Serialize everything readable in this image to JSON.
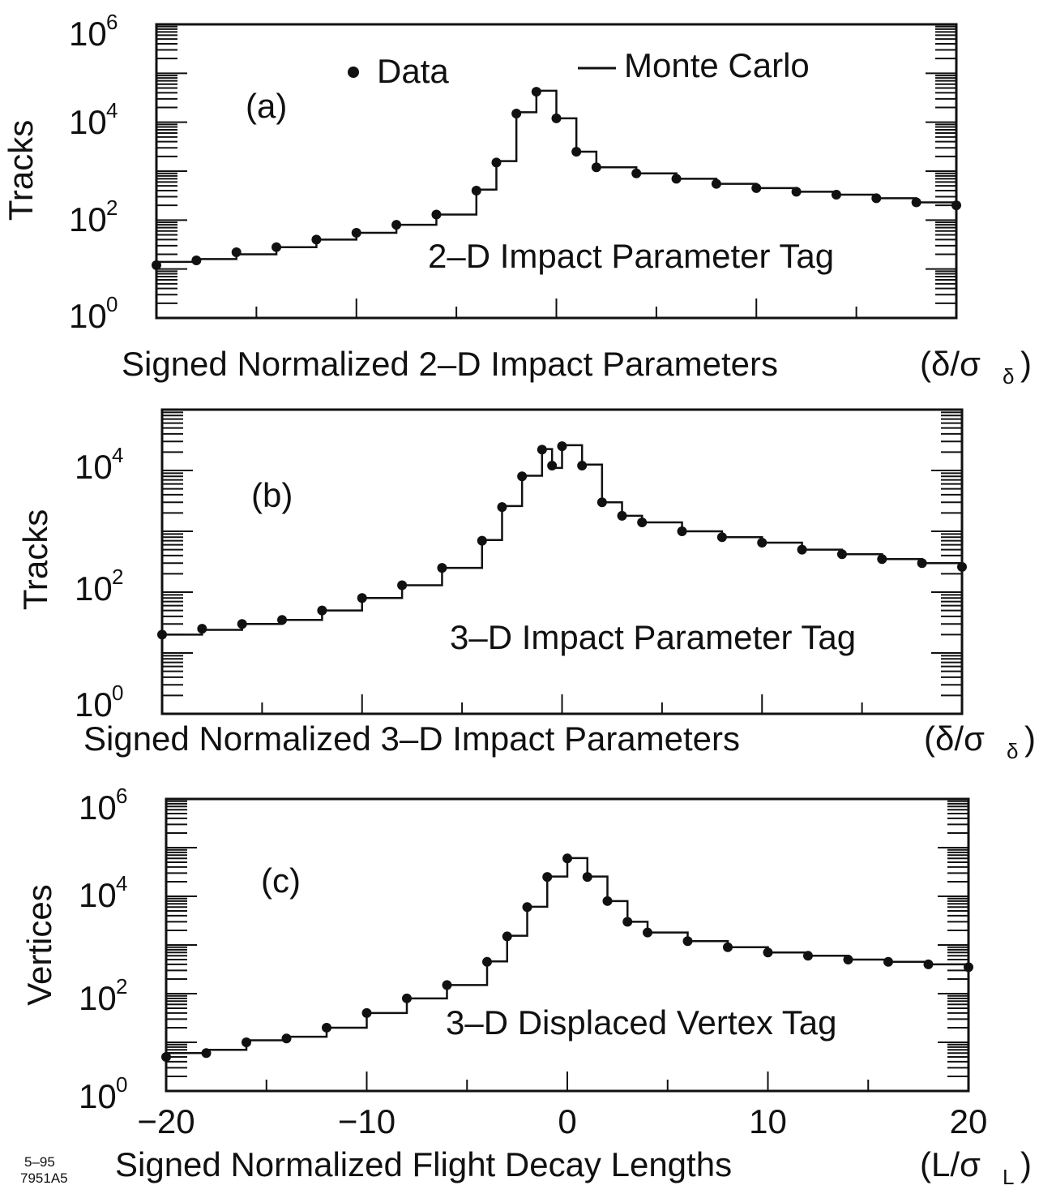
{
  "legend": {
    "data_label": "Data",
    "mc_label": "Monte Carlo"
  },
  "footnote": {
    "line1": "5–95",
    "line2": "7951A5"
  },
  "chart_data": [
    {
      "type": "histogram",
      "panel_label": "(a)",
      "tag_label": "2–D Impact Parameter Tag",
      "ylabel": "Tracks",
      "xlabel": "Signed Normalized 2–D Impact Parameters",
      "xlabel_unit": "(δ/σ",
      "xlabel_unit_sub": "δ",
      "xlim": [
        -20,
        20
      ],
      "ylim": [
        1,
        1000000
      ],
      "yscale": "log",
      "ytick_labels": [
        {
          "base": "10",
          "exp": "6",
          "value": 1000000
        },
        {
          "base": "10",
          "exp": "4",
          "value": 10000
        },
        {
          "base": "10",
          "exp": "2",
          "value": 100
        },
        {
          "base": "10",
          "exp": "0",
          "value": 1
        }
      ],
      "xtick_labels": [],
      "series": [
        {
          "name": "Data",
          "style": "points",
          "x": [
            -20,
            -18,
            -16,
            -14,
            -12,
            -10,
            -8,
            -6,
            -4,
            -3,
            -2,
            -1,
            0,
            1,
            2,
            4,
            6,
            8,
            10,
            12,
            14,
            16,
            18,
            20
          ],
          "y": [
            12,
            15,
            22,
            28,
            40,
            55,
            80,
            130,
            400,
            1500,
            15000,
            42000,
            12000,
            2500,
            1200,
            900,
            700,
            550,
            450,
            380,
            330,
            280,
            230,
            200
          ]
        },
        {
          "name": "Monte Carlo",
          "style": "step",
          "x": [
            -20,
            -18,
            -16,
            -14,
            -12,
            -10,
            -8,
            -6,
            -4,
            -3,
            -2,
            -1,
            0,
            1,
            2,
            4,
            6,
            8,
            10,
            12,
            14,
            16,
            18,
            20
          ],
          "y": [
            14,
            16,
            20,
            28,
            40,
            55,
            80,
            130,
            420,
            1600,
            16000,
            44000,
            12000,
            2500,
            1200,
            900,
            700,
            550,
            450,
            380,
            330,
            280,
            230,
            200
          ]
        }
      ]
    },
    {
      "type": "histogram",
      "panel_label": "(b)",
      "tag_label": "3–D Impact Parameter Tag",
      "ylabel": "Tracks",
      "xlabel": "Signed Normalized 3–D Impact Parameters",
      "xlabel_unit": "(δ/σ",
      "xlabel_unit_sub": "δ",
      "xlim": [
        -20,
        20
      ],
      "ylim": [
        1,
        100000
      ],
      "yscale": "log",
      "ytick_labels": [
        {
          "base": "10",
          "exp": "4",
          "value": 10000
        },
        {
          "base": "10",
          "exp": "2",
          "value": 100
        },
        {
          "base": "10",
          "exp": "0",
          "value": 1
        }
      ],
      "xtick_labels": [],
      "series": [
        {
          "name": "Data",
          "style": "points",
          "x": [
            -20,
            -18,
            -16,
            -14,
            -12,
            -10,
            -8,
            -6,
            -4,
            -3,
            -2,
            -1,
            -0.5,
            0,
            1,
            2,
            3,
            4,
            6,
            8,
            10,
            12,
            14,
            16,
            18,
            20
          ],
          "y": [
            20,
            25,
            30,
            35,
            50,
            80,
            130,
            250,
            700,
            2500,
            8000,
            22000,
            12000,
            25000,
            12000,
            3000,
            1800,
            1400,
            1000,
            800,
            650,
            500,
            420,
            350,
            300,
            260
          ]
        },
        {
          "name": "Monte Carlo",
          "style": "step",
          "x": [
            -20,
            -18,
            -16,
            -14,
            -12,
            -10,
            -8,
            -6,
            -4,
            -3,
            -2,
            -1,
            -0.5,
            0,
            1,
            2,
            3,
            4,
            6,
            8,
            10,
            12,
            14,
            16,
            18,
            20
          ],
          "y": [
            20,
            24,
            30,
            35,
            50,
            80,
            130,
            250,
            720,
            2600,
            8200,
            22500,
            11000,
            26000,
            12500,
            3000,
            1800,
            1400,
            1000,
            800,
            650,
            500,
            420,
            350,
            300,
            260
          ]
        }
      ]
    },
    {
      "type": "histogram",
      "panel_label": "(c)",
      "tag_label": "3–D Displaced Vertex Tag",
      "ylabel": "Vertices",
      "xlabel": "Signed Normalized Flight Decay Lengths",
      "xlabel_unit": "(L/σ",
      "xlabel_unit_sub": "L",
      "xlim": [
        -20,
        20
      ],
      "ylim": [
        1,
        1000000
      ],
      "yscale": "log",
      "ytick_labels": [
        {
          "base": "10",
          "exp": "6",
          "value": 1000000
        },
        {
          "base": "10",
          "exp": "4",
          "value": 10000
        },
        {
          "base": "10",
          "exp": "2",
          "value": 100
        },
        {
          "base": "10",
          "exp": "0",
          "value": 1
        }
      ],
      "xtick_labels": [
        "−20",
        "−10",
        "0",
        "10",
        "20"
      ],
      "series": [
        {
          "name": "Data",
          "style": "points",
          "x": [
            -20,
            -18,
            -16,
            -14,
            -12,
            -10,
            -8,
            -6,
            -4,
            -3,
            -2,
            -1,
            0,
            1,
            2,
            3,
            4,
            6,
            8,
            10,
            12,
            14,
            16,
            18,
            20
          ],
          "y": [
            5,
            6,
            10,
            12,
            20,
            40,
            80,
            150,
            450,
            1500,
            6000,
            25000,
            60000,
            25000,
            8000,
            3000,
            1800,
            1200,
            900,
            700,
            600,
            500,
            450,
            400,
            350
          ]
        },
        {
          "name": "Monte Carlo",
          "style": "step",
          "x": [
            -20,
            -18,
            -16,
            -14,
            -12,
            -10,
            -8,
            -6,
            -4,
            -3,
            -2,
            -1,
            0,
            1,
            2,
            3,
            4,
            6,
            8,
            10,
            12,
            14,
            16,
            18,
            20
          ],
          "y": [
            6,
            7,
            11,
            13,
            20,
            40,
            80,
            150,
            460,
            1550,
            6100,
            25500,
            61000,
            25500,
            8000,
            3000,
            1800,
            1200,
            900,
            700,
            600,
            500,
            450,
            400,
            350
          ]
        }
      ]
    }
  ]
}
